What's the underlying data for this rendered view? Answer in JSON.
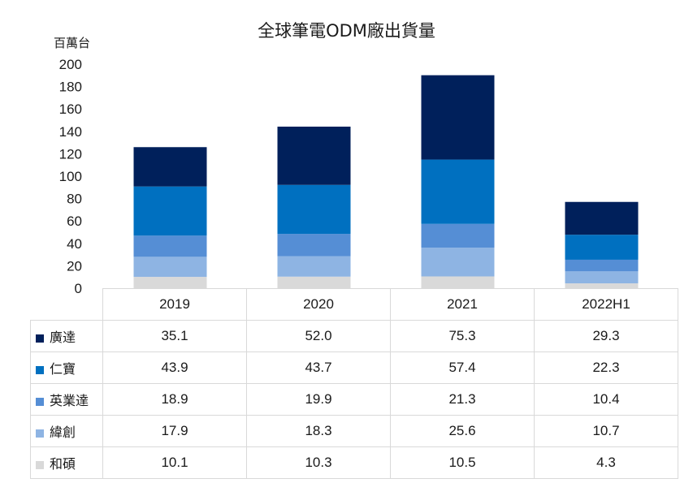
{
  "chart_data": {
    "type": "bar",
    "stacked": true,
    "title": "全球筆電ODM廠出貨量",
    "ylabel": "百萬台",
    "ylim": [
      0,
      200
    ],
    "yticks": [
      0,
      20,
      40,
      60,
      80,
      100,
      120,
      140,
      160,
      180,
      200
    ],
    "categories": [
      "2019",
      "2020",
      "2021",
      "2022H1"
    ],
    "series": [
      {
        "name": "廣達",
        "color": "#00205b",
        "values": [
          "35.1",
          "52.0",
          "75.3",
          "29.3"
        ]
      },
      {
        "name": "仁寶",
        "color": "#0070c0",
        "values": [
          "43.9",
          "43.7",
          "57.4",
          "22.3"
        ]
      },
      {
        "name": "英業達",
        "color": "#558ed5",
        "values": [
          "18.9",
          "19.9",
          "21.3",
          "10.4"
        ]
      },
      {
        "name": "緯創",
        "color": "#8eb4e3",
        "values": [
          "17.9",
          "18.3",
          "25.6",
          "10.7"
        ]
      },
      {
        "name": "和碩",
        "color": "#d9d9d9",
        "values": [
          "10.1",
          "10.3",
          "10.5",
          "4.3"
        ]
      }
    ]
  }
}
